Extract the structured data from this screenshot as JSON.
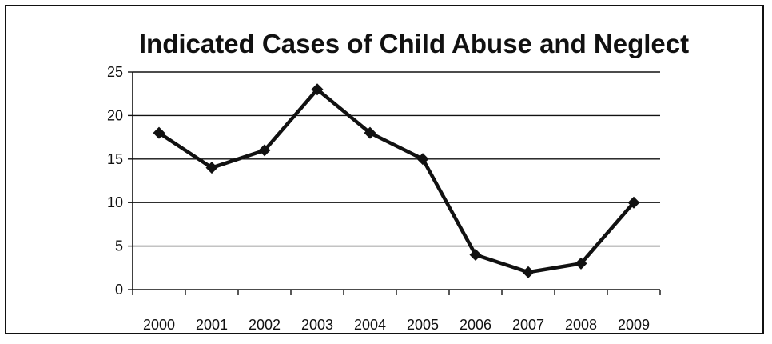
{
  "chart_data": {
    "type": "line",
    "title": "Indicated Cases of Child Abuse and Neglect",
    "xlabel": "",
    "ylabel": "",
    "categories": [
      "2000",
      "2001",
      "2002",
      "2003",
      "2004",
      "2005",
      "2006",
      "2007",
      "2008",
      "2009"
    ],
    "series": [
      {
        "values": [
          18,
          14,
          16,
          23,
          18,
          15,
          4,
          2,
          3,
          10
        ]
      }
    ],
    "ylim": [
      0,
      25
    ],
    "yticks": [
      0,
      5,
      10,
      15,
      20,
      25
    ],
    "grid": true,
    "legend": "none",
    "line_color": "#111111"
  }
}
